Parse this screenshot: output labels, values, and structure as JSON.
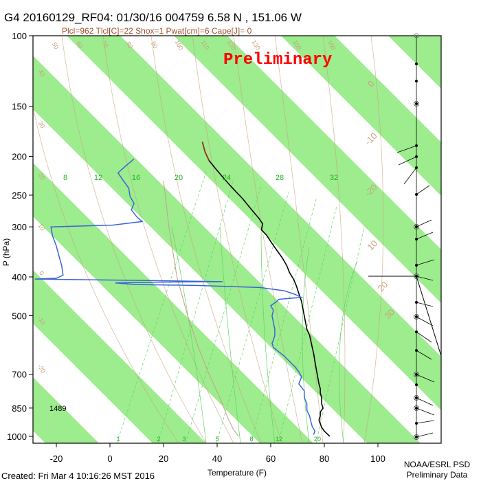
{
  "header": {
    "title": "G4 20160129_RF04: 01/30/16 004759   6.58 N , 151.06 W",
    "subtitle": "Plcl=962 Tlcl[C]=22 Shox=1 Pwat[cm]=6 Cape[J]= 0",
    "watermark": "Preliminary"
  },
  "footer": {
    "created": "Created: Fri Mar  4 10:16:26 MST 2016",
    "credit_line1": "NOAA/ESRL PSD",
    "credit_line2": "Preliminary Data"
  },
  "colors": {
    "band_green": "#9dec8e",
    "temperature": "#000000",
    "dewpoint": "#3a64d8",
    "watermark": "#ff0000",
    "dry_adiabat": "#c9a27e",
    "moist_adiabat": "#5fd65f",
    "mixing_ratio": "#5fd65f",
    "parcel": "#c8a488"
  },
  "chart_data": {
    "type": "skew-t",
    "xlabel": "Temperature (F)",
    "ylabel": "P (hPa)",
    "xlim": [
      -28,
      122
    ],
    "ylim": [
      1040,
      100
    ],
    "x_ticks": [
      "-20",
      "0",
      "20",
      "40",
      "60",
      "80",
      "100"
    ],
    "x_tick_values": [
      -20,
      0,
      20,
      40,
      60,
      80,
      100
    ],
    "y_ticks": [
      "100",
      "150",
      "200",
      "250",
      "300",
      "400",
      "500",
      "700",
      "850",
      "1000"
    ],
    "y_tick_values": [
      100,
      150,
      200,
      250,
      300,
      400,
      500,
      700,
      850,
      1000
    ],
    "height_annotation": "1489",
    "isotherm_labels_top": [
      "-20",
      "-10",
      "0",
      "10",
      "20",
      "30"
    ],
    "dry_adiabat_labels": [
      "50",
      "60",
      "70",
      "80",
      "90",
      "100",
      "110",
      "120",
      "130",
      "150",
      "160"
    ],
    "dry_adiabat_left_labels": [
      "40",
      "30",
      "20",
      "10",
      "0",
      "-10",
      "-20"
    ],
    "mixing_ratio_row_labels": [
      "8",
      "12",
      "16",
      "20",
      "24",
      "28",
      "32"
    ],
    "mixing_ratio_bottom_labels": [
      "1",
      "2",
      "3",
      "5",
      "8",
      "12",
      "20"
    ],
    "series": [
      {
        "name": "Temperature",
        "points": [
          [
            34.5,
            184
          ],
          [
            35.5,
            195
          ],
          [
            37,
            205
          ],
          [
            39.5,
            215
          ],
          [
            42,
            225
          ],
          [
            44.5,
            235
          ],
          [
            47,
            245
          ],
          [
            49.5,
            255
          ],
          [
            51.5,
            265
          ],
          [
            53.5,
            275
          ],
          [
            55.5,
            285
          ],
          [
            57,
            295
          ],
          [
            56.5,
            305
          ],
          [
            58.5,
            315
          ],
          [
            60.5,
            330
          ],
          [
            62.5,
            345
          ],
          [
            64.5,
            360
          ],
          [
            66,
            375
          ],
          [
            67,
            390
          ],
          [
            68.5,
            405
          ],
          [
            69.5,
            420
          ],
          [
            70.5,
            440
          ],
          [
            71.5,
            460
          ],
          [
            72,
            480
          ],
          [
            72.5,
            500
          ],
          [
            73,
            520
          ],
          [
            73.5,
            540
          ],
          [
            74.5,
            560
          ],
          [
            75,
            580
          ],
          [
            75.5,
            600
          ],
          [
            76,
            620
          ],
          [
            76.5,
            650
          ],
          [
            77,
            680
          ],
          [
            77.5,
            710
          ],
          [
            78,
            740
          ],
          [
            78.5,
            760
          ],
          [
            78.5,
            780
          ],
          [
            79,
            800
          ],
          [
            79,
            830
          ],
          [
            79.5,
            850
          ],
          [
            78.5,
            870
          ],
          [
            78.5,
            890
          ],
          [
            78,
            910
          ],
          [
            78.5,
            930
          ],
          [
            79,
            950
          ],
          [
            80,
            970
          ],
          [
            81,
            985
          ],
          [
            82,
            1000
          ]
        ]
      },
      {
        "name": "Dewpoint",
        "points": [
          [
            9,
            203
          ],
          [
            6,
            211
          ],
          [
            3,
            220
          ],
          [
            5,
            230
          ],
          [
            7,
            240
          ],
          [
            7.5,
            252
          ],
          [
            9,
            262
          ],
          [
            8,
            272
          ],
          [
            10,
            283
          ],
          [
            12,
            291
          ],
          [
            1,
            297
          ],
          [
            -22,
            300
          ],
          [
            -21.5,
            315
          ],
          [
            -20,
            335
          ],
          [
            -19,
            355
          ],
          [
            -18,
            375
          ],
          [
            -17.5,
            396
          ],
          [
            -20,
            403
          ],
          [
            -28,
            405
          ],
          [
            10,
            408
          ],
          [
            42,
            411
          ],
          [
            20,
            412
          ],
          [
            2,
            414
          ],
          [
            10,
            418
          ],
          [
            32,
            420
          ],
          [
            56,
            425
          ],
          [
            65,
            433
          ],
          [
            69,
            442
          ],
          [
            71.5,
            450
          ],
          [
            68,
            452
          ],
          [
            63,
            455
          ],
          [
            62,
            462
          ],
          [
            60,
            472
          ],
          [
            61,
            485
          ],
          [
            60.5,
            500
          ],
          [
            61,
            520
          ],
          [
            61.5,
            540
          ],
          [
            61.5,
            560
          ],
          [
            61,
            575
          ],
          [
            60.5,
            585
          ],
          [
            61,
            600
          ],
          [
            63,
            615
          ],
          [
            65,
            630
          ],
          [
            67,
            650
          ],
          [
            69,
            670
          ],
          [
            70.5,
            690
          ],
          [
            71.5,
            710
          ],
          [
            70.5,
            740
          ],
          [
            72.5,
            770
          ],
          [
            72.5,
            800
          ],
          [
            73.5,
            830
          ],
          [
            73.5,
            860
          ],
          [
            74.5,
            890
          ],
          [
            75,
            920
          ],
          [
            75.5,
            945
          ],
          [
            76.5,
            970
          ],
          [
            76,
            990
          ]
        ]
      }
    ],
    "parcel_path": [
      [
        20,
        230
      ],
      [
        22,
        300
      ],
      [
        25,
        400
      ],
      [
        29,
        500
      ],
      [
        33,
        600
      ],
      [
        37,
        700
      ],
      [
        41,
        800
      ],
      [
        44,
        900
      ],
      [
        46,
        960
      ],
      [
        48,
        1000
      ]
    ]
  }
}
